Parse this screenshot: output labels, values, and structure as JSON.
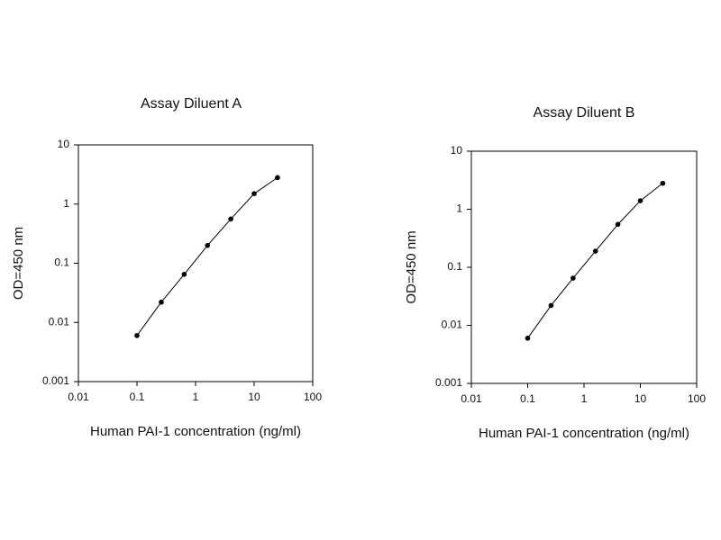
{
  "chart_data": [
    {
      "type": "line",
      "title": "Assay Diluent A",
      "xlabel": "Human PAI-1 concentration (ng/ml)",
      "ylabel": "OD=450 nm",
      "xscale": "log",
      "yscale": "log",
      "xlim": [
        0.01,
        100
      ],
      "ylim": [
        0.001,
        10
      ],
      "xticks": [
        0.01,
        0.1,
        1,
        10,
        100
      ],
      "yticks": [
        0.001,
        0.01,
        0.1,
        1,
        10
      ],
      "x": [
        0.1,
        0.26,
        0.64,
        1.6,
        4,
        10,
        25
      ],
      "series": [
        {
          "color": "#000000",
          "values": [
            0.006,
            0.022,
            0.065,
            0.2,
            0.56,
            1.5,
            2.8
          ]
        }
      ]
    },
    {
      "type": "line",
      "title": "Assay Diluent B",
      "xlabel": "Human PAI-1 concentration (ng/ml)",
      "ylabel": "OD=450 nm",
      "xscale": "log",
      "yscale": "log",
      "xlim": [
        0.01,
        100
      ],
      "ylim": [
        0.001,
        10
      ],
      "xticks": [
        0.01,
        0.1,
        1,
        10,
        100
      ],
      "yticks": [
        0.001,
        0.01,
        0.1,
        1,
        10
      ],
      "x": [
        0.1,
        0.26,
        0.64,
        1.6,
        4,
        10,
        25
      ],
      "series": [
        {
          "color": "#000000",
          "values": [
            0.006,
            0.022,
            0.065,
            0.19,
            0.55,
            1.4,
            2.8
          ]
        }
      ]
    }
  ]
}
